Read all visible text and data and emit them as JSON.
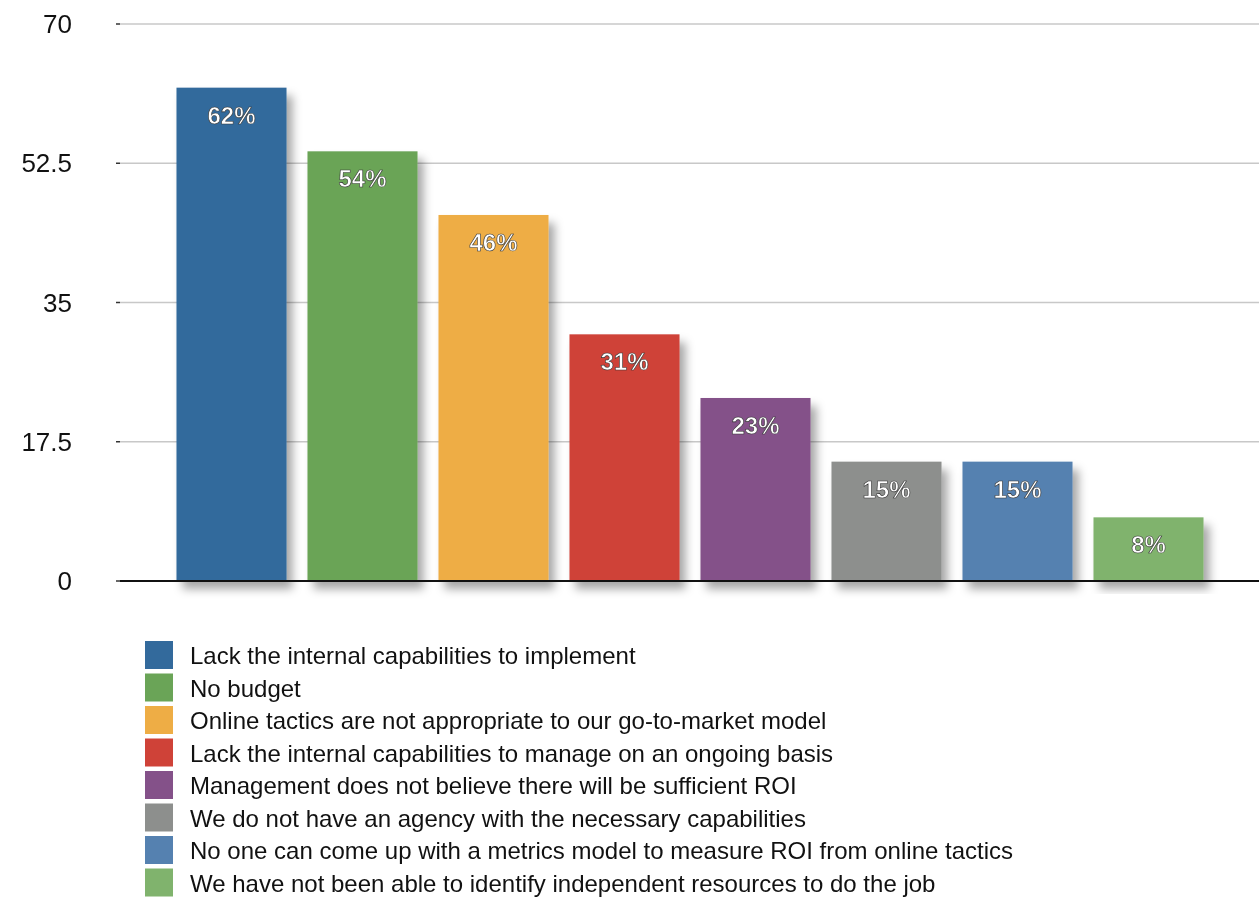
{
  "chart_data": {
    "type": "bar",
    "categories": [
      null,
      null,
      null,
      null,
      null,
      null,
      null,
      null
    ],
    "series": [
      {
        "name": "Lack the internal capabilities to implement",
        "color": "#336a9c",
        "values": [
          62,
          null,
          null,
          null,
          null,
          null,
          null,
          null
        ],
        "value_labels": [
          "62%",
          null,
          null,
          null,
          null,
          null,
          null,
          null
        ]
      },
      {
        "name": "No budget",
        "color": "#6aa457",
        "values": [
          null,
          54,
          null,
          null,
          null,
          null,
          null,
          null
        ],
        "value_labels": [
          null,
          "54%",
          null,
          null,
          null,
          null,
          null,
          null
        ]
      },
      {
        "name": "Online tactics are not appropriate to our go-to-market model",
        "color": "#eead45",
        "values": [
          null,
          null,
          46,
          null,
          null,
          null,
          null,
          null
        ],
        "value_labels": [
          null,
          null,
          "46%",
          null,
          null,
          null,
          null,
          null
        ]
      },
      {
        "name": "Lack the internal capabilities to manage on an ongoing basis",
        "color": "#cf4238",
        "values": [
          null,
          null,
          null,
          31,
          null,
          null,
          null,
          null
        ],
        "value_labels": [
          null,
          null,
          null,
          "31%",
          null,
          null,
          null,
          null
        ]
      },
      {
        "name": "Management does not believe there will be sufficient ROI",
        "color": "#845189",
        "values": [
          null,
          null,
          null,
          null,
          23,
          null,
          null,
          null
        ],
        "value_labels": [
          null,
          null,
          null,
          null,
          "23%",
          null,
          null,
          null
        ]
      },
      {
        "name": "We do not have an agency with the necessary capabilities",
        "color": "#8d8f8d",
        "values": [
          null,
          null,
          null,
          null,
          null,
          15,
          null,
          null
        ],
        "value_labels": [
          null,
          null,
          null,
          null,
          null,
          "15%",
          null,
          null
        ]
      },
      {
        "name": "No one can come up with a metrics model to measure ROI from online tactics",
        "color": "#5581b0",
        "values": [
          null,
          null,
          null,
          null,
          null,
          null,
          15,
          null
        ],
        "value_labels": [
          null,
          null,
          null,
          null,
          null,
          null,
          "15%",
          null
        ]
      },
      {
        "name": "We have not been able to identify independent resources to do the job",
        "color": "#80b36d",
        "values": [
          null,
          null,
          null,
          null,
          null,
          null,
          null,
          8
        ],
        "value_labels": [
          null,
          null,
          null,
          null,
          null,
          null,
          null,
          "8%"
        ]
      }
    ],
    "ylim": [
      0,
      70
    ],
    "yticks": [
      0,
      17.5,
      35,
      52.5,
      70
    ],
    "grid": "y",
    "legend": "bottom"
  }
}
